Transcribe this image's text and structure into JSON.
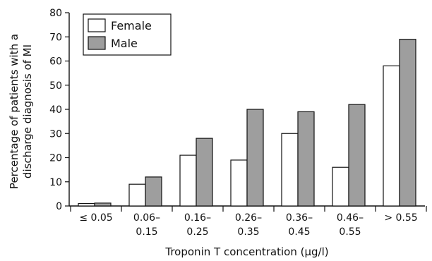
{
  "chart_data": {
    "type": "bar",
    "categories": [
      [
        "≤ 0.05"
      ],
      [
        "0.06–",
        "0.15"
      ],
      [
        "0.16–",
        "0.25"
      ],
      [
        "0.26–",
        "0.35"
      ],
      [
        "0.36–",
        "0.45"
      ],
      [
        "0.46–",
        "0.55"
      ],
      [
        "> 0.55"
      ]
    ],
    "series": [
      {
        "name": "Female",
        "color": "#ffffff",
        "values": [
          1,
          9,
          21,
          19,
          30,
          16,
          58
        ]
      },
      {
        "name": "Male",
        "color": "#9e9e9e",
        "values": [
          1.2,
          12,
          28,
          40,
          39,
          42,
          69
        ]
      }
    ],
    "title": "",
    "xlabel": "Troponin T concentration (μg/l)",
    "ylabel": [
      "Percentage of patients with a",
      "discharge diagnosis of MI"
    ],
    "ylim": [
      0,
      80
    ],
    "yticks": [
      0,
      10,
      20,
      30,
      40,
      50,
      60,
      70,
      80
    ],
    "grid": false,
    "legend_position": "top-left"
  }
}
